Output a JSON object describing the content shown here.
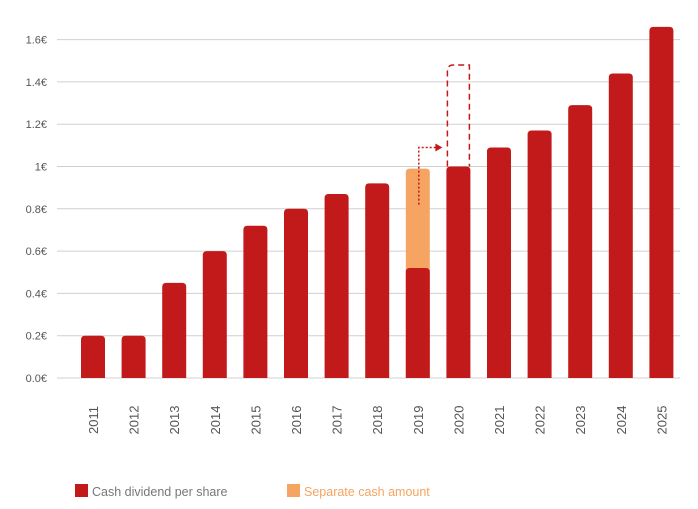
{
  "chart_data": {
    "type": "bar",
    "stacked": true,
    "categories": [
      "2011",
      "2012",
      "2013",
      "2014",
      "2015",
      "2016",
      "2017",
      "2018",
      "2019",
      "2020",
      "2021",
      "2022",
      "2023",
      "2024",
      "2025"
    ],
    "series": [
      {
        "name": "Cash dividend per share",
        "color": "#c21a1a",
        "values": [
          0.2,
          0.2,
          0.45,
          0.6,
          0.72,
          0.8,
          0.87,
          0.92,
          0.52,
          1.0,
          1.09,
          1.17,
          1.29,
          1.44,
          1.66
        ]
      },
      {
        "name": "Separate cash amount",
        "color": "#f5a462",
        "values": [
          0,
          0,
          0,
          0,
          0,
          0,
          0,
          0,
          0.47,
          0,
          0,
          0,
          0,
          0,
          0
        ]
      }
    ],
    "annotation": {
      "category": "2020",
      "dashed_outline_top": 1.48,
      "arrow_from": "2019"
    },
    "yticks": [
      "0.0€",
      "0.2€",
      "0.4€",
      "0.6€",
      "0.8€",
      "1€",
      "1.2€",
      "1.4€",
      "1.6€"
    ],
    "ytick_values": [
      0,
      0.2,
      0.4,
      0.6,
      0.8,
      1.0,
      1.2,
      1.4,
      1.6
    ],
    "ylim": [
      0,
      1.6
    ],
    "grid": true,
    "legend_placement": "bottom-left"
  }
}
